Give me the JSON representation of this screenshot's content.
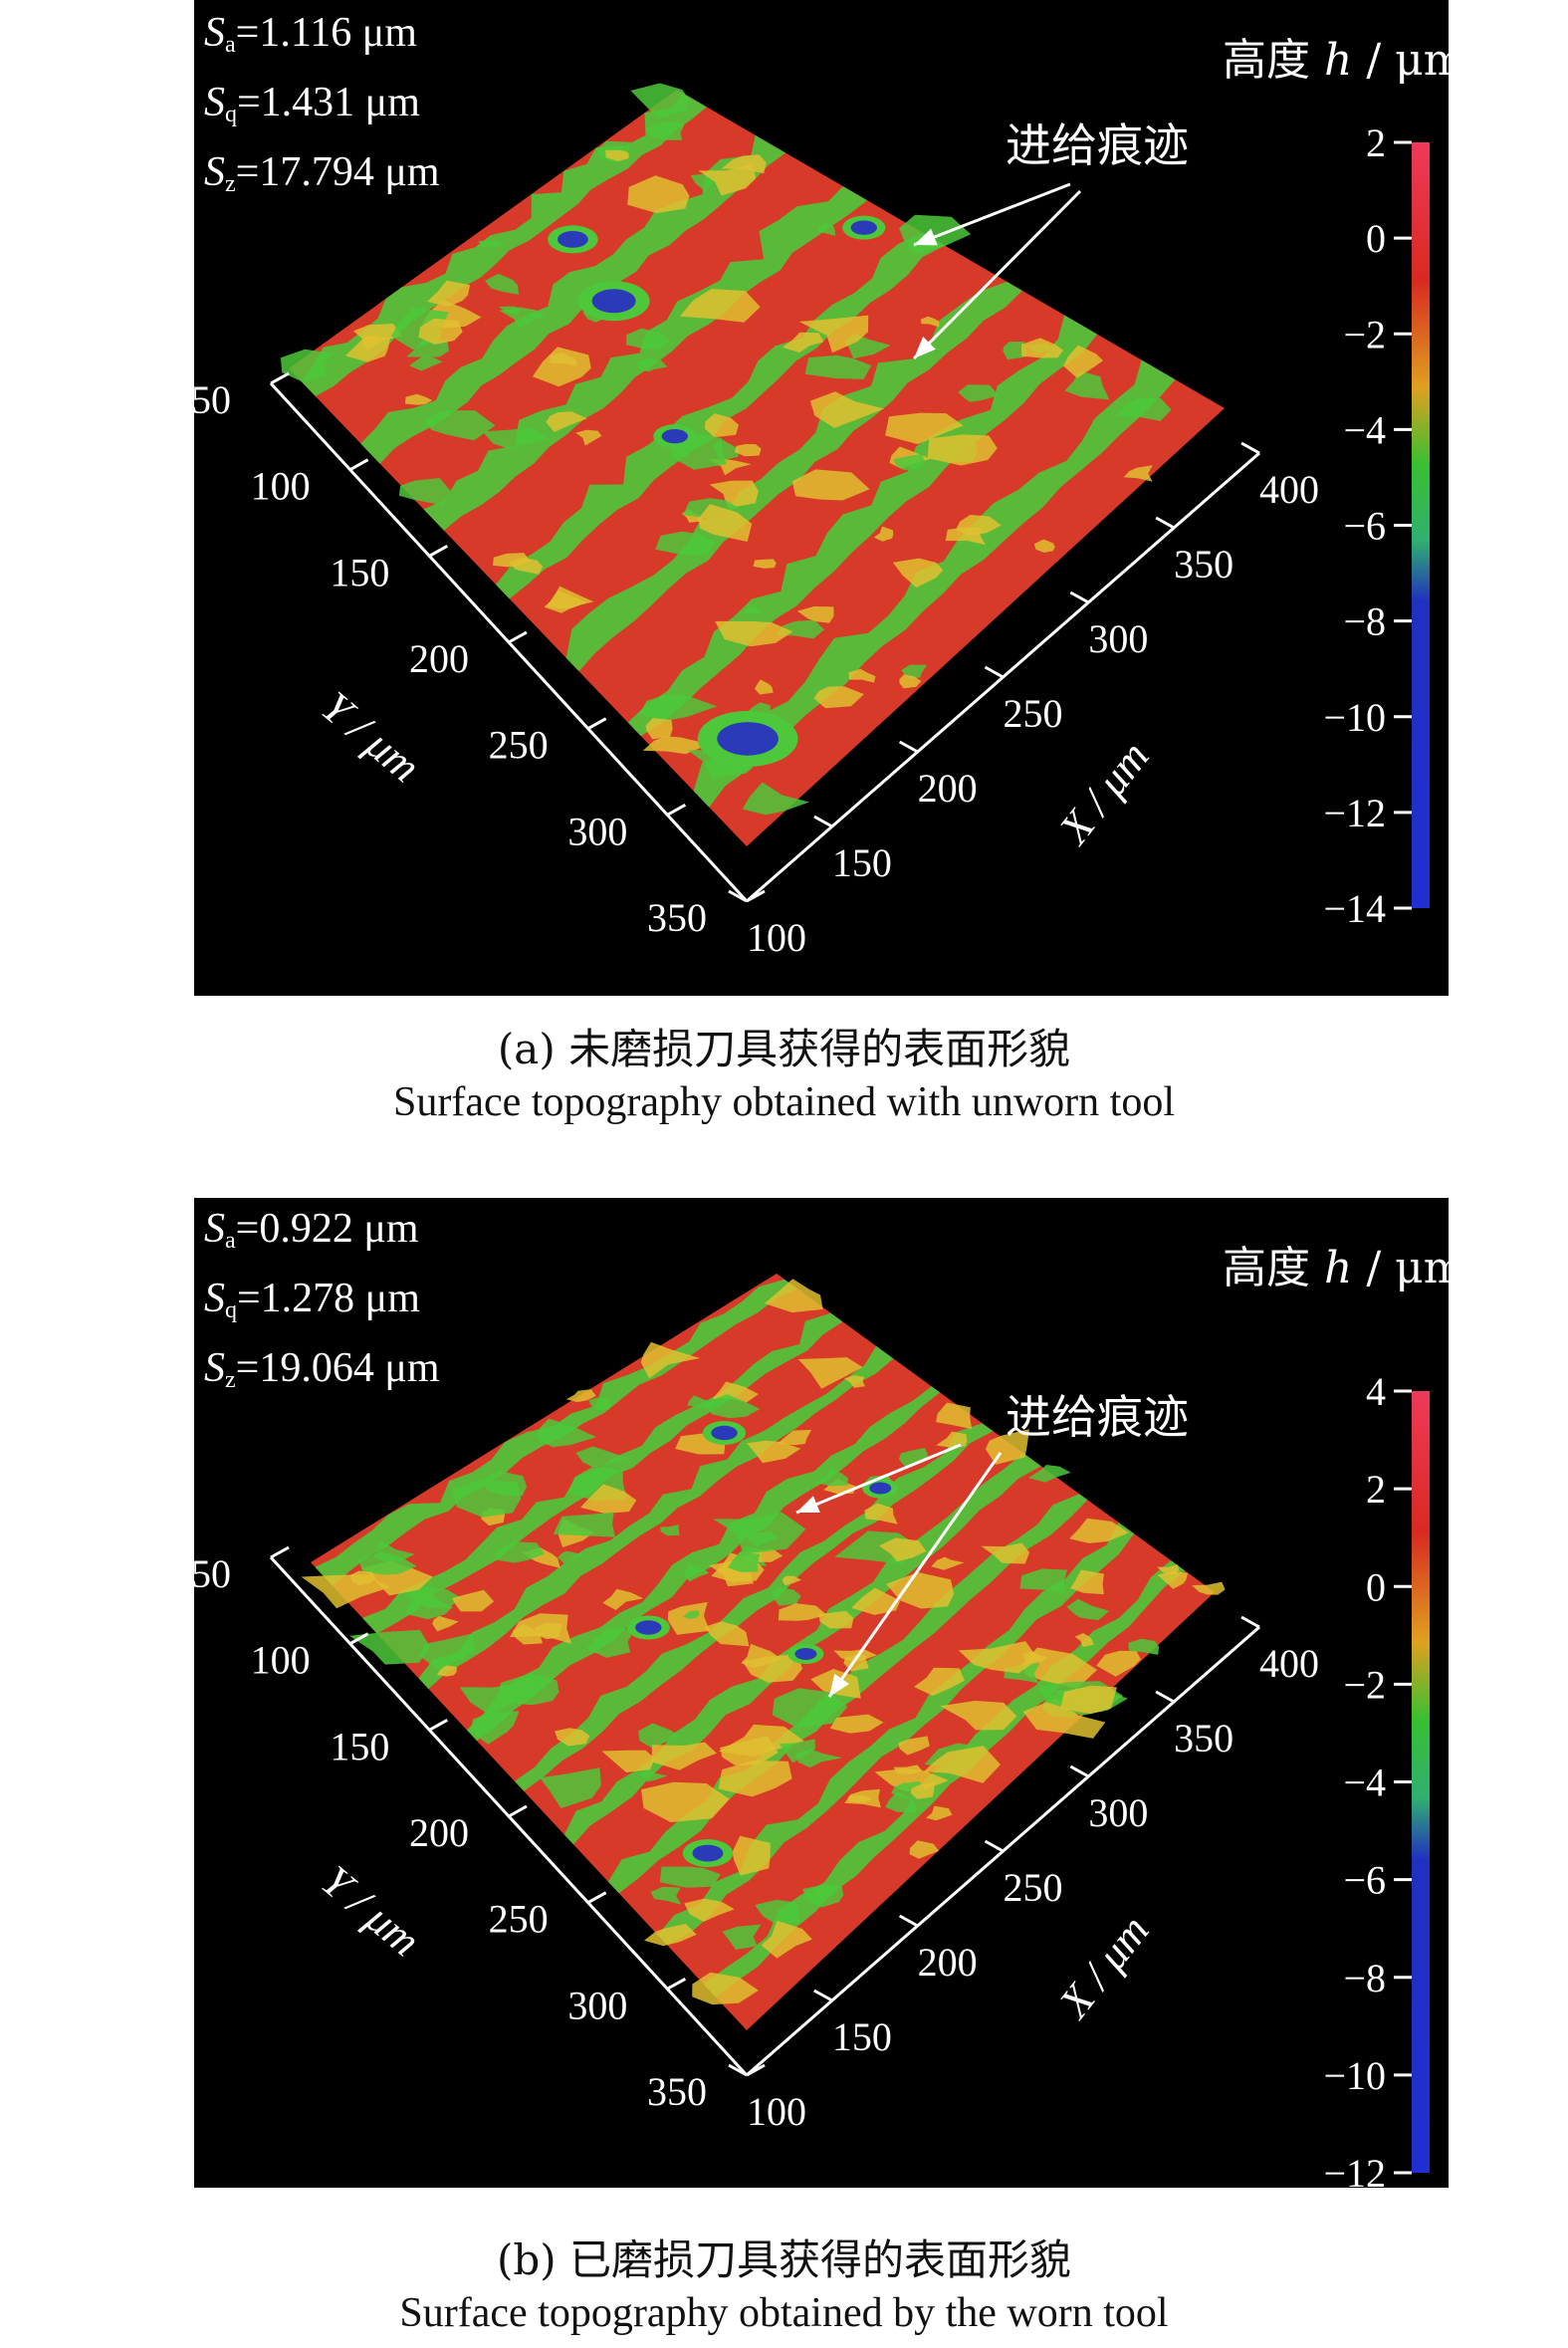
{
  "panels": [
    {
      "stats": {
        "sa": "=1.116 μm",
        "sq": "=1.431 μm",
        "sz": "=17.794 μm"
      },
      "colorbar": {
        "title_cn": "高度 ",
        "title_var": "h",
        "title_unit": " / μm",
        "ticks": [
          "2",
          "0",
          "−2",
          "−4",
          "−6",
          "−8",
          "−10",
          "−12",
          "−14"
        ]
      },
      "annotation": "进给痕迹",
      "caption_cn": "(a) 未磨损刀具获得的表面形貌",
      "caption_en": "Surface topography obtained with unworn tool"
    },
    {
      "stats": {
        "sa": "=0.922 μm",
        "sq": "=1.278 μm",
        "sz": "=19.064 μm"
      },
      "colorbar": {
        "title_cn": "高度 ",
        "title_var": "h",
        "title_unit": " / μm",
        "ticks": [
          "4",
          "2",
          "0",
          "−2",
          "−4",
          "−6",
          "−8",
          "−10",
          "−12"
        ]
      },
      "annotation": "进给痕迹",
      "caption_cn": "(b) 已磨损刀具获得的表面形貌",
      "caption_en": "Surface topography obtained by the worn tool"
    }
  ],
  "axes": {
    "x_label": "X / μm",
    "y_label": "Y / μm",
    "x_ticks": [
      "100",
      "150",
      "200",
      "250",
      "300",
      "350",
      "400"
    ],
    "y_ticks": [
      "50",
      "100",
      "150",
      "200",
      "250",
      "300",
      "350"
    ]
  },
  "stat_symbols": {
    "s": "S",
    "a": "a",
    "q": "q",
    "z": "z"
  },
  "colors": {
    "high": "#d83a2a",
    "mid": "#4cc83a",
    "low": "#2a3ab8",
    "background": "#000000"
  },
  "chart_data": [
    {
      "type": "heatmap",
      "subtype": "3d-surface",
      "title": "(a) 未磨损刀具获得的表面形貌",
      "xlabel": "X / μm",
      "ylabel": "Y / μm",
      "zlabel": "高度 h / μm",
      "x_ticks": [
        100,
        150,
        200,
        250,
        300,
        350,
        400
      ],
      "y_ticks": [
        50,
        100,
        150,
        200,
        250,
        300,
        350
      ],
      "color_range": [
        -14,
        2
      ],
      "colorbar_ticks": [
        2,
        0,
        -2,
        -4,
        -6,
        -8,
        -10,
        -12,
        -14
      ],
      "stats": {
        "Sa": 1.116,
        "Sq": 1.431,
        "Sz": 17.794,
        "unit": "μm"
      },
      "annotation": "进给痕迹"
    },
    {
      "type": "heatmap",
      "subtype": "3d-surface",
      "title": "(b) 已磨损刀具获得的表面形貌",
      "xlabel": "X / μm",
      "ylabel": "Y / μm",
      "zlabel": "高度 h / μm",
      "x_ticks": [
        100,
        150,
        200,
        250,
        300,
        350,
        400
      ],
      "y_ticks": [
        50,
        100,
        150,
        200,
        250,
        300,
        350
      ],
      "color_range": [
        -12,
        4
      ],
      "colorbar_ticks": [
        4,
        2,
        0,
        -2,
        -4,
        -6,
        -8,
        -10,
        -12
      ],
      "stats": {
        "Sa": 0.922,
        "Sq": 1.278,
        "Sz": 19.064,
        "unit": "μm"
      },
      "annotation": "进给痕迹"
    }
  ]
}
